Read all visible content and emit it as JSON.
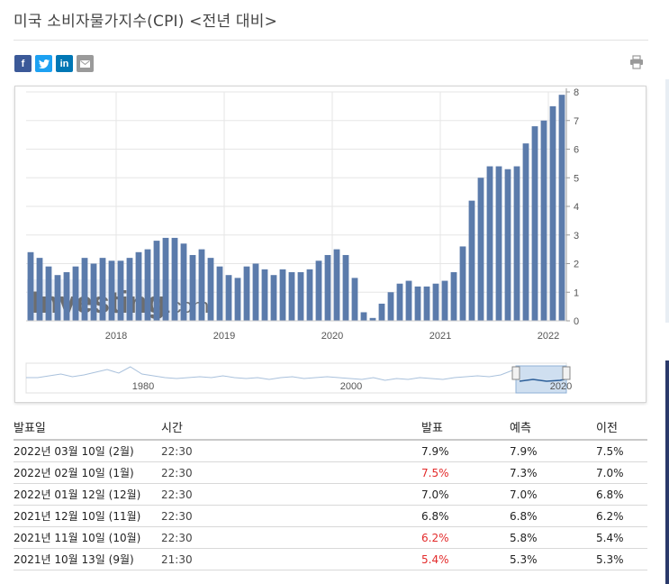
{
  "header": {
    "title": "미국 소비자물가지수(CPI) <전년 대비>"
  },
  "share": {
    "facebook_icon": "f",
    "twitter_icon": "t",
    "linkedin_icon": "in",
    "email_icon": "email-icon",
    "print_icon": "printer-icon",
    "colors": {
      "facebook": "#3b5998",
      "twitter": "#1da1f2",
      "linkedin": "#0077b5",
      "email": "#9a9a9a"
    }
  },
  "chart_data": {
    "type": "bar",
    "title": "",
    "xlabel": "",
    "ylabel": "",
    "ylim": [
      0,
      8
    ],
    "y_ticks": [
      "0",
      "1",
      "2",
      "3",
      "4",
      "5",
      "6",
      "7",
      "8"
    ],
    "x_ticks": [
      "2018",
      "2019",
      "2020",
      "2021",
      "2022"
    ],
    "grid": true,
    "bar_color": "#5b7bab",
    "watermark": "Investing.com",
    "start_month": "2017-03",
    "end_month": "2022-02",
    "values": [
      2.4,
      2.2,
      1.9,
      1.6,
      1.7,
      1.9,
      2.2,
      2.0,
      2.2,
      2.1,
      2.1,
      2.2,
      2.4,
      2.5,
      2.8,
      2.9,
      2.9,
      2.7,
      2.3,
      2.5,
      2.2,
      1.9,
      1.6,
      1.5,
      1.9,
      2.0,
      1.8,
      1.6,
      1.8,
      1.7,
      1.7,
      1.8,
      2.1,
      2.3,
      2.5,
      2.3,
      1.5,
      0.3,
      0.1,
      0.6,
      1.0,
      1.3,
      1.4,
      1.2,
      1.2,
      1.3,
      1.4,
      1.7,
      2.6,
      4.2,
      5.0,
      5.4,
      5.4,
      5.3,
      5.4,
      6.2,
      6.8,
      7.0,
      7.5,
      7.9
    ],
    "navigator": {
      "x_ticks": [
        "1980",
        "2000",
        "2020"
      ]
    }
  },
  "table": {
    "headers": [
      "발표일",
      "시간",
      "발표",
      "예측",
      "이전"
    ],
    "rows": [
      {
        "date": "2022년 03월 10일 (2월)",
        "time": "22:30",
        "actual": "7.9%",
        "forecast": "7.9%",
        "previous": "7.5%",
        "actual_red": false
      },
      {
        "date": "2022년 02월 10일 (1월)",
        "time": "22:30",
        "actual": "7.5%",
        "forecast": "7.3%",
        "previous": "7.0%",
        "actual_red": true
      },
      {
        "date": "2022년 01월 12일 (12월)",
        "time": "22:30",
        "actual": "7.0%",
        "forecast": "7.0%",
        "previous": "6.8%",
        "actual_red": false
      },
      {
        "date": "2021년 12월 10일 (11월)",
        "time": "22:30",
        "actual": "6.8%",
        "forecast": "6.8%",
        "previous": "6.2%",
        "actual_red": false
      },
      {
        "date": "2021년 11월 10일 (10월)",
        "time": "22:30",
        "actual": "6.2%",
        "forecast": "5.8%",
        "previous": "5.4%",
        "actual_red": true
      },
      {
        "date": "2021년 10월 13일 (9월)",
        "time": "21:30",
        "actual": "5.4%",
        "forecast": "5.3%",
        "previous": "5.3%",
        "actual_red": true
      }
    ]
  }
}
